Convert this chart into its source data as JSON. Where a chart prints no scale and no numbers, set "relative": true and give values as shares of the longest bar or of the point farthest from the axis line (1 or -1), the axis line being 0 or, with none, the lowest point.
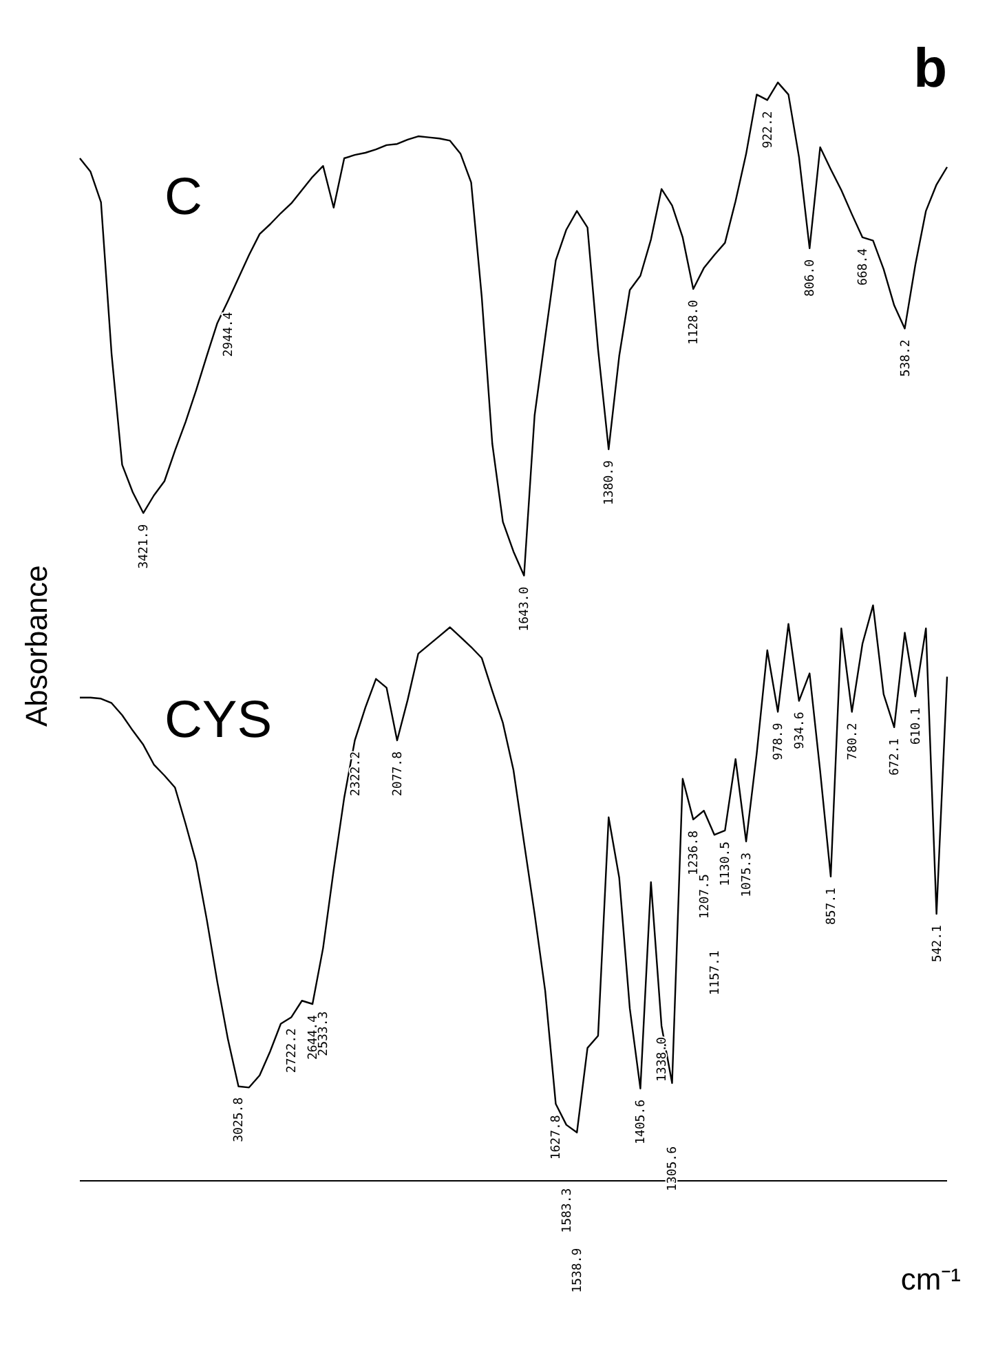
{
  "chart_data": {
    "type": "line",
    "relative": true,
    "xlabel": "cm⁻¹",
    "ylabel": "Absorbance",
    "marker": "none",
    "line_style": "solid",
    "annotations": [
      "b",
      "3421.9",
      "2944.4",
      "1643.0",
      "1380.9",
      "1128.0",
      "922.2",
      "806.0",
      "668.4",
      "538.2",
      "3025.8",
      "2722.2",
      "2644.4",
      "2533.3",
      "2322.2",
      "2077.8",
      "1627.8",
      "1583.3",
      "1538.9",
      "1405.6",
      "1338.0",
      "1305.6",
      "1236.8",
      "1207.5",
      "1157.1",
      "1130.5",
      "1075.3",
      "978.9",
      "934.6",
      "857.1",
      "780.2",
      "672.1",
      "610.1",
      "542.1"
    ],
    "categories": [
      null,
      null,
      null,
      null,
      null,
      null,
      null,
      null,
      null,
      null,
      null,
      null,
      null,
      null,
      null,
      null,
      null,
      null,
      null,
      null,
      null,
      null,
      null,
      null,
      null,
      null,
      null,
      null,
      null,
      null,
      null,
      null,
      null,
      null,
      null,
      null,
      null,
      null,
      null,
      null,
      null,
      null,
      null,
      null,
      null,
      null,
      null,
      null,
      null,
      null,
      null,
      null,
      null,
      null,
      null,
      null,
      null,
      null,
      null,
      null,
      null,
      null,
      null,
      null,
      null,
      null,
      null,
      null,
      null,
      null,
      null,
      null,
      null,
      null,
      null,
      null,
      null,
      null,
      null,
      null,
      null,
      null,
      null
    ],
    "series": [
      {
        "name": "C",
        "color": "#000000",
        "values": [
          0.931,
          0.919,
          0.891,
          0.753,
          0.652,
          0.627,
          0.608,
          0.624,
          0.637,
          0.665,
          0.691,
          0.72,
          0.751,
          0.781,
          0.801,
          0.822,
          0.843,
          0.862,
          0.871,
          0.881,
          0.89,
          0.902,
          0.914,
          0.924,
          0.886,
          0.931,
          0.934,
          0.936,
          0.939,
          0.943,
          0.944,
          0.948,
          0.951,
          0.95,
          0.949,
          0.947,
          0.935,
          0.909,
          0.805,
          0.671,
          0.6,
          0.573,
          0.551,
          0.697,
          0.768,
          0.838,
          0.866,
          0.883,
          0.868,
          0.757,
          0.666,
          0.751,
          0.811,
          0.824,
          0.857,
          0.903,
          0.888,
          0.859,
          0.812,
          0.831,
          0.843,
          0.854,
          0.892,
          0.935,
          0.989,
          0.984,
          1.0,
          0.989,
          0.932,
          0.849,
          0.941,
          0.921,
          0.902,
          0.88,
          0.859,
          0.856,
          0.83,
          0.797,
          0.776,
          0.834,
          0.883,
          0.907,
          0.923
        ]
      },
      {
        "name": "CYS",
        "color": "#000000",
        "values": [
          0.44,
          0.44,
          0.439,
          0.435,
          0.424,
          0.41,
          0.397,
          0.379,
          0.369,
          0.358,
          0.325,
          0.29,
          0.238,
          0.181,
          0.129,
          0.086,
          0.085,
          0.096,
          0.118,
          0.143,
          0.149,
          0.164,
          0.161,
          0.212,
          0.283,
          0.349,
          0.401,
          0.431,
          0.457,
          0.449,
          0.401,
          0.438,
          0.48,
          0.488,
          0.496,
          0.504,
          0.495,
          0.486,
          0.476,
          0.446,
          0.417,
          0.374,
          0.308,
          0.243,
          0.173,
          0.07,
          0.051,
          0.044,
          0.121,
          0.132,
          0.331,
          0.276,
          0.157,
          0.084,
          0.272,
          0.141,
          0.089,
          0.366,
          0.329,
          0.337,
          0.315,
          0.319,
          0.384,
          0.309,
          0.389,
          0.483,
          0.427,
          0.507,
          0.437,
          0.462,
          0.373,
          0.277,
          0.503,
          0.427,
          0.489,
          0.524,
          0.443,
          0.413,
          0.499,
          0.441,
          0.503,
          0.243,
          0.459
        ]
      }
    ]
  }
}
